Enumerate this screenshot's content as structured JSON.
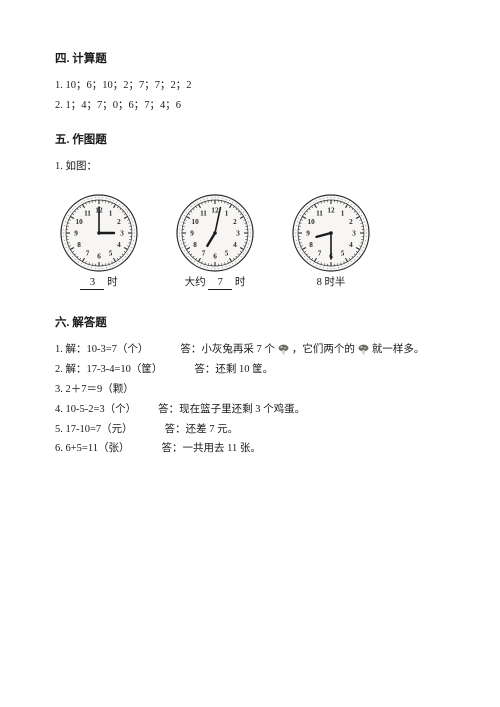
{
  "calc": {
    "title": "四. 计算题",
    "line1": "1. 10；6；10；2；7；7；2；2",
    "line2": "2. 1；4；7；0；6；7；4；6"
  },
  "draw": {
    "title": "五. 作图题",
    "line1": "1. 如图：",
    "clocks": [
      {
        "hour": 3,
        "minute": 0,
        "caption_prefix": "",
        "blank": "3",
        "caption_suffix": " 时"
      },
      {
        "hour": 7,
        "minute": 2,
        "caption_prefix": "大约 ",
        "blank": "7",
        "caption_suffix": " 时"
      },
      {
        "hour": 8,
        "minute": 30,
        "caption_prefix": "",
        "blank": "",
        "caption_suffix": "8 时半"
      }
    ],
    "clock_style": {
      "size": 78,
      "face_fill": "#f7f6f4",
      "tick_color": "#2a2a2a",
      "hand_color": "#1a1a1a",
      "number_font": 7.2
    }
  },
  "story": {
    "title": "六. 解答题",
    "q1_a": "1. 解：10-3=7（个）",
    "q1_b": "答：小灰兔再采 7 个",
    "q1_c": "，它们两个的",
    "q1_d": "就一样多。",
    "q2_a": "2. 解：17-3-4=10（筐）",
    "q2_b": "答：还剩 10 筐。",
    "q3": "3. 2＋7＝9（颗）",
    "q4_a": "4. 10-5-2=3（个）",
    "q4_b": "答：现在篮子里还剩 3 个鸡蛋。",
    "q5_a": "5. 17-10=7（元）",
    "q5_b": "答：还差 7 元。",
    "q6_a": "6. 6+5=11（张）",
    "q6_b": "答：一共用去 11 张。"
  },
  "colors": {
    "text": "#1a1a1a",
    "bg": "#ffffff"
  }
}
